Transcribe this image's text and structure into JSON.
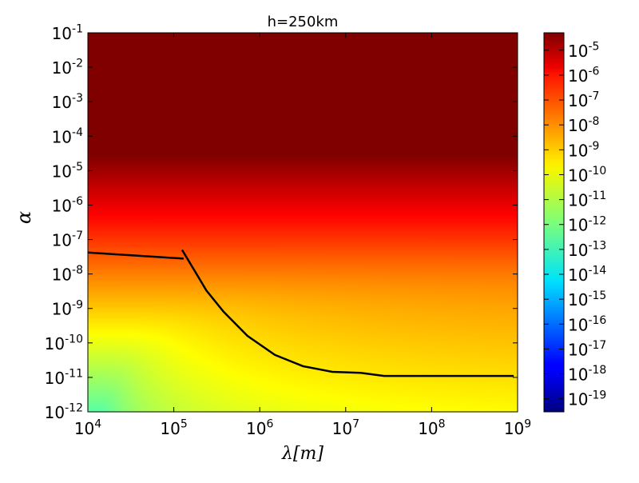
{
  "chart_data": {
    "type": "heatmap",
    "title": "h=250km",
    "xlabel": "λ[m]",
    "ylabel": "α",
    "x_scale": "log",
    "y_scale": "log",
    "xlim": [
      10000,
      1000000000
    ],
    "ylim": [
      1e-12,
      0.1
    ],
    "x_ticks": [
      {
        "value": 10000,
        "base": "10",
        "exp": "4"
      },
      {
        "value": 100000,
        "base": "10",
        "exp": "5"
      },
      {
        "value": 1000000,
        "base": "10",
        "exp": "6"
      },
      {
        "value": 10000000,
        "base": "10",
        "exp": "7"
      },
      {
        "value": 100000000,
        "base": "10",
        "exp": "8"
      },
      {
        "value": 1000000000,
        "base": "10",
        "exp": "9"
      }
    ],
    "y_ticks": [
      {
        "value": 1e-12,
        "base": "10",
        "exp": "-12"
      },
      {
        "value": 1e-11,
        "base": "10",
        "exp": "-11"
      },
      {
        "value": 1e-10,
        "base": "10",
        "exp": "-10"
      },
      {
        "value": 1e-09,
        "base": "10",
        "exp": "-9"
      },
      {
        "value": 1e-08,
        "base": "10",
        "exp": "-8"
      },
      {
        "value": 1e-07,
        "base": "10",
        "exp": "-7"
      },
      {
        "value": 1e-06,
        "base": "10",
        "exp": "-6"
      },
      {
        "value": 1e-05,
        "base": "10",
        "exp": "-5"
      },
      {
        "value": 0.0001,
        "base": "10",
        "exp": "-4"
      },
      {
        "value": 0.001,
        "base": "10",
        "exp": "-3"
      },
      {
        "value": 0.01,
        "base": "10",
        "exp": "-2"
      },
      {
        "value": 0.1,
        "base": "10",
        "exp": "-1"
      }
    ],
    "colorbar": {
      "scale": "log",
      "range": [
        3e-20,
        5e-05
      ],
      "colormap": "jet",
      "ticks": [
        {
          "value": 1e-05,
          "base": "10",
          "exp": "-5"
        },
        {
          "value": 1e-06,
          "base": "10",
          "exp": "-6"
        },
        {
          "value": 1e-07,
          "base": "10",
          "exp": "-7"
        },
        {
          "value": 1e-08,
          "base": "10",
          "exp": "-8"
        },
        {
          "value": 1e-09,
          "base": "10",
          "exp": "-9"
        },
        {
          "value": 1e-10,
          "base": "10",
          "exp": "-10"
        },
        {
          "value": 1e-11,
          "base": "10",
          "exp": "-11"
        },
        {
          "value": 1e-12,
          "base": "10",
          "exp": "-12"
        },
        {
          "value": 1e-13,
          "base": "10",
          "exp": "-13"
        },
        {
          "value": 1e-14,
          "base": "10",
          "exp": "-14"
        },
        {
          "value": 1e-15,
          "base": "10",
          "exp": "-15"
        },
        {
          "value": 1e-16,
          "base": "10",
          "exp": "-16"
        },
        {
          "value": 1e-17,
          "base": "10",
          "exp": "-17"
        },
        {
          "value": 1e-18,
          "base": "10",
          "exp": "-18"
        },
        {
          "value": 1e-19,
          "base": "10",
          "exp": "-19"
        }
      ]
    },
    "series": [
      {
        "color": "#000000",
        "points": [
          [
            10000,
            4.2e-08
          ],
          [
            130000,
            2.8e-08
          ]
        ]
      },
      {
        "color": "#000000",
        "points": [
          [
            125000,
            5e-08
          ],
          [
            240000,
            3.3e-09
          ],
          [
            380000,
            8e-10
          ],
          [
            720000,
            1.6e-10
          ],
          [
            1500000,
            4.5e-11
          ],
          [
            3200000,
            2.1e-11
          ],
          [
            7000000,
            1.45e-11
          ],
          [
            15000000,
            1.35e-11
          ],
          [
            28000000,
            1.1e-11
          ],
          [
            900000000,
            1.1e-11
          ]
        ]
      }
    ],
    "grid": false
  }
}
